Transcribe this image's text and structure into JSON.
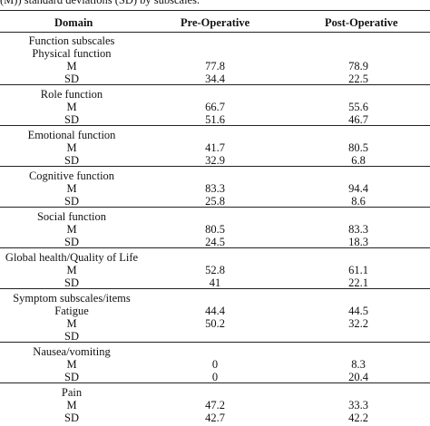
{
  "caption": "(M)) standard deviations (SD) by subscales.",
  "headers": {
    "domain": "Domain",
    "pre": "Pre-Operative",
    "post": "Post-Operative"
  },
  "rows": [
    {
      "label": "Function subscales",
      "pre": "",
      "post": ""
    },
    {
      "label": "Physical function",
      "pre": "",
      "post": ""
    },
    {
      "label": "M",
      "pre": "77.8",
      "post": "78.9"
    },
    {
      "label": "SD",
      "pre": "34.4",
      "post": "22.5"
    },
    {
      "label": "Role function",
      "pre": "",
      "post": ""
    },
    {
      "label": "M",
      "pre": "66.7",
      "post": "55.6"
    },
    {
      "label": "SD",
      "pre": "51.6",
      "post": "46.7"
    },
    {
      "label": "Emotional function",
      "pre": "",
      "post": ""
    },
    {
      "label": "M",
      "pre": "41.7",
      "post": "80.5"
    },
    {
      "label": "SD",
      "pre": "32.9",
      "post": "6.8"
    },
    {
      "label": "Cognitive function",
      "pre": "",
      "post": ""
    },
    {
      "label": "M",
      "pre": "83.3",
      "post": "94.4"
    },
    {
      "label": "SD",
      "pre": "25.8",
      "post": "8.6"
    },
    {
      "label": "Social function",
      "pre": "",
      "post": ""
    },
    {
      "label": "M",
      "pre": "80.5",
      "post": "83.3"
    },
    {
      "label": "SD",
      "pre": "24.5",
      "post": "18.3"
    },
    {
      "label": "Global health/Quality of Life",
      "pre": "",
      "post": ""
    },
    {
      "label": "M",
      "pre": "52.8",
      "post": "61.1"
    },
    {
      "label": "SD",
      "pre": "41",
      "post": "22.1"
    },
    {
      "label": "Symptom subscales/items",
      "pre": "",
      "post": ""
    },
    {
      "label": "Fatigue",
      "pre": "44.4",
      "post": "44.5"
    },
    {
      "label": "M",
      "pre": "50.2",
      "post": "32.2"
    },
    {
      "label": "SD",
      "pre": "",
      "post": ""
    },
    {
      "label": "Nausea/vomiting",
      "pre": "",
      "post": ""
    },
    {
      "label": "M",
      "pre": "0",
      "post": "8.3"
    },
    {
      "label": "SD",
      "pre": "0",
      "post": "20.4"
    },
    {
      "label": "Pain",
      "pre": "",
      "post": ""
    },
    {
      "label": "M",
      "pre": "47.2",
      "post": "33.3"
    },
    {
      "label": "SD",
      "pre": "42.7",
      "post": "42.2"
    }
  ]
}
